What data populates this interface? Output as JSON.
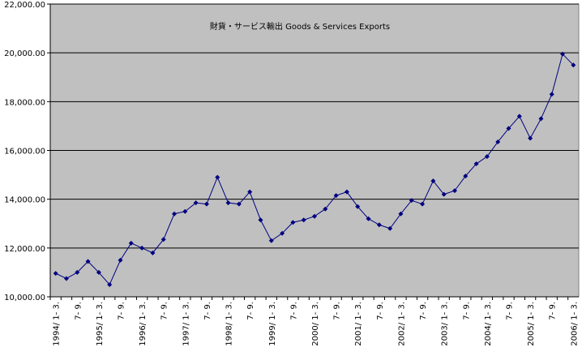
{
  "chart_data": {
    "type": "line",
    "title": "財貨・サービス輸出 Goods & Services Exports",
    "categories": [
      "1994/ 1- 3.",
      null,
      "7- 9.",
      null,
      "1995/ 1- 3.",
      null,
      "7- 9.",
      null,
      "1996/ 1- 3.",
      null,
      "7- 9.",
      null,
      "1997/ 1- 3.",
      null,
      "7- 9.",
      null,
      "1998/ 1- 3.",
      null,
      "7- 9.",
      null,
      "1999/ 1- 3.",
      null,
      "7- 9.",
      null,
      "2000/ 1- 3.",
      null,
      "7- 9.",
      null,
      "2001/ 1- 3.",
      null,
      "7- 9.",
      null,
      "2002/ 1- 3.",
      null,
      "7- 9.",
      null,
      "2003/ 1- 3.",
      null,
      "7- 9.",
      null,
      "2004/ 1- 3.",
      null,
      "7- 9.",
      null,
      "2005/ 1- 3.",
      null,
      "7- 9.",
      null,
      "2006/ 1- 3."
    ],
    "series": [
      {
        "color": "#000080",
        "values": [
          10960,
          10750,
          11000,
          11450,
          11000,
          10500,
          11500,
          12200,
          12000,
          11800,
          12350,
          13400,
          13500,
          13850,
          13800,
          14900,
          13850,
          13800,
          14300,
          13150,
          12300,
          12600,
          13050,
          13150,
          13300,
          13600,
          14150,
          14300,
          13700,
          13200,
          12950,
          12800,
          13400,
          13950,
          13800,
          14750,
          14200,
          14350,
          14950,
          15450,
          15750,
          16350,
          16900,
          17400,
          16500,
          17300,
          18300,
          19950,
          19500
        ]
      }
    ],
    "ylim": [
      10000,
      22000
    ],
    "yticks": [
      {
        "value": 10000,
        "label": "10,000.00"
      },
      {
        "value": 12000,
        "label": "12,000.00"
      },
      {
        "value": 14000,
        "label": "14,000.00"
      },
      {
        "value": 16000,
        "label": "16,000.00"
      },
      {
        "value": 18000,
        "label": "18,000.00"
      },
      {
        "value": 20000,
        "label": "20,000.00"
      },
      {
        "value": 22000,
        "label": "22,000.00"
      }
    ],
    "grid": true
  }
}
